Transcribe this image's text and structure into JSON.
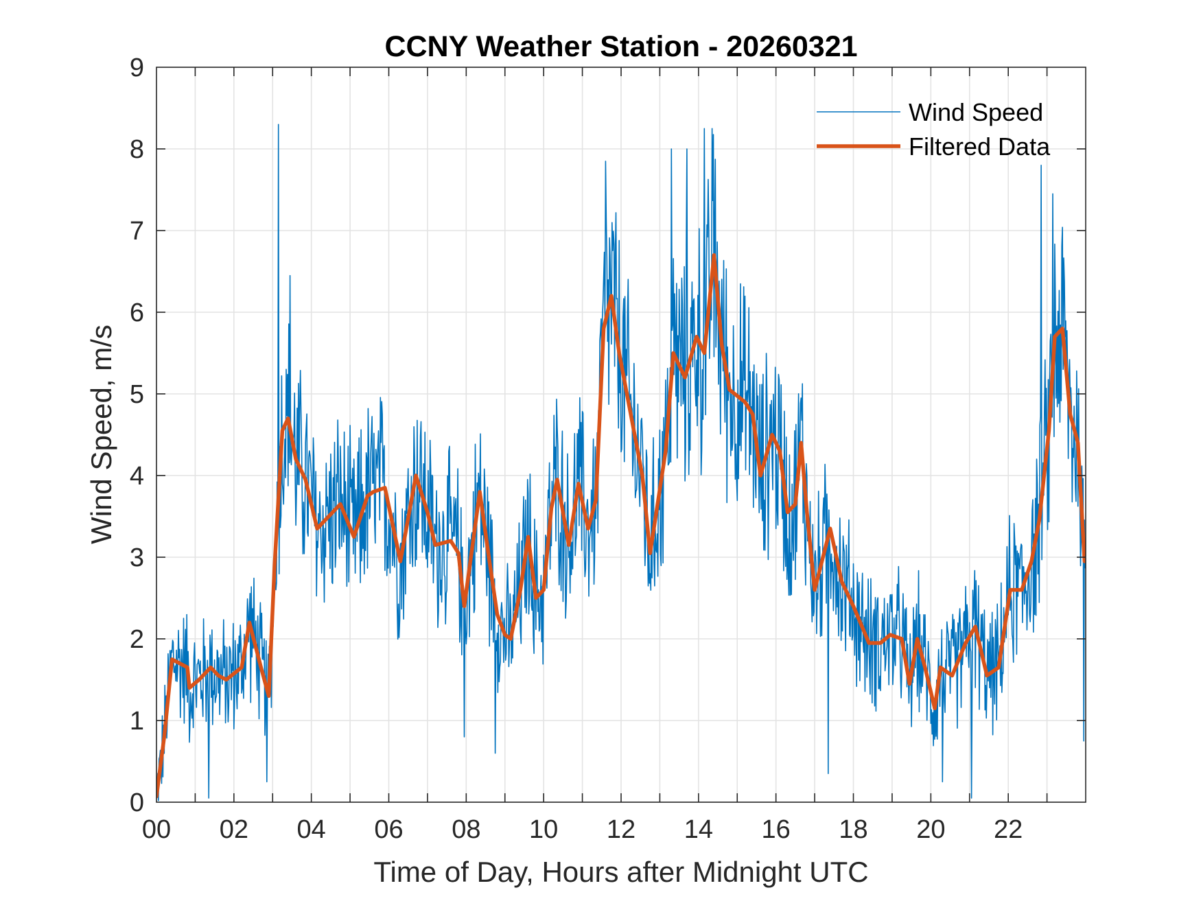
{
  "chart_data": {
    "type": "line",
    "title": "CCNY Weather Station - 20260321",
    "xlabel": "Time of Day, Hours after Midnight UTC",
    "ylabel": "Wind Speed, m/s",
    "xlim": [
      0,
      24
    ],
    "ylim": [
      0,
      9
    ],
    "grid": true,
    "legend_position": "top-right",
    "x_ticks": [
      0,
      2,
      4,
      6,
      8,
      10,
      12,
      14,
      16,
      18,
      20,
      22
    ],
    "x_tick_labels": [
      "00",
      "02",
      "04",
      "06",
      "08",
      "10",
      "12",
      "14",
      "16",
      "18",
      "20",
      "22"
    ],
    "y_ticks": [
      0,
      1,
      2,
      3,
      4,
      5,
      6,
      7,
      8,
      9
    ],
    "y_tick_labels": [
      "0",
      "1",
      "2",
      "3",
      "4",
      "5",
      "6",
      "7",
      "8",
      "9"
    ],
    "series": [
      {
        "name": "Wind Speed",
        "color": "#0072BD",
        "style": "thin",
        "noise_amplitude": 1.1,
        "sample_interval_minutes": 1,
        "notable_peaks": [
          {
            "x": 3.15,
            "y": 8.3
          },
          {
            "x": 3.45,
            "y": 6.45
          },
          {
            "x": 11.6,
            "y": 7.85
          },
          {
            "x": 13.3,
            "y": 8.0
          },
          {
            "x": 13.7,
            "y": 8.0
          },
          {
            "x": 14.15,
            "y": 8.25
          },
          {
            "x": 14.35,
            "y": 8.25
          },
          {
            "x": 22.85,
            "y": 7.8
          },
          {
            "x": 23.15,
            "y": 7.45
          }
        ],
        "notable_troughs": [
          {
            "x": 1.35,
            "y": 0.05
          },
          {
            "x": 2.85,
            "y": 0.25
          },
          {
            "x": 7.95,
            "y": 0.8
          },
          {
            "x": 8.75,
            "y": 0.6
          },
          {
            "x": 17.35,
            "y": 0.35
          },
          {
            "x": 20.3,
            "y": 0.25
          },
          {
            "x": 21.05,
            "y": 0.05
          },
          {
            "x": 23.95,
            "y": 0.75
          }
        ]
      },
      {
        "name": "Filtered Data",
        "color": "#D95319",
        "style": "thick",
        "x": [
          0,
          0.2,
          0.4,
          0.8,
          0.85,
          1.1,
          1.4,
          1.6,
          1.8,
          2.2,
          2.4,
          2.7,
          2.9,
          3.05,
          3.25,
          3.4,
          3.6,
          3.85,
          4.15,
          4.55,
          4.75,
          5.1,
          5.45,
          5.6,
          5.9,
          6.3,
          6.7,
          7.0,
          7.2,
          7.6,
          7.8,
          7.95,
          8.15,
          8.35,
          8.6,
          8.8,
          9.0,
          9.15,
          9.4,
          9.6,
          9.8,
          10.0,
          10.2,
          10.35,
          10.65,
          10.9,
          11.15,
          11.35,
          11.55,
          11.75,
          11.95,
          12.25,
          12.55,
          12.75,
          13.15,
          13.35,
          13.65,
          13.95,
          14.15,
          14.4,
          14.6,
          14.8,
          15.2,
          15.4,
          15.6,
          15.9,
          16.1,
          16.3,
          16.5,
          16.65,
          16.8,
          17.0,
          17.4,
          17.7,
          18.0,
          18.4,
          18.7,
          18.95,
          19.25,
          19.45,
          19.65,
          19.85,
          20.1,
          20.25,
          20.55,
          20.9,
          21.15,
          21.45,
          21.75,
          22.05,
          22.35,
          22.6,
          22.8,
          23.05,
          23.2,
          23.4,
          23.6,
          23.8,
          23.97
        ],
        "values": [
          0.07,
          0.8,
          1.75,
          1.65,
          1.4,
          1.5,
          1.65,
          1.55,
          1.5,
          1.65,
          2.2,
          1.65,
          1.3,
          2.9,
          4.55,
          4.7,
          4.2,
          3.95,
          3.35,
          3.55,
          3.65,
          3.25,
          3.75,
          3.8,
          3.85,
          2.95,
          4.0,
          3.55,
          3.15,
          3.2,
          3.05,
          2.4,
          3.1,
          3.8,
          2.95,
          2.3,
          2.05,
          2.0,
          2.6,
          3.25,
          2.5,
          2.6,
          3.6,
          3.95,
          3.15,
          3.9,
          3.35,
          3.7,
          5.8,
          6.2,
          5.5,
          4.75,
          4.0,
          3.05,
          4.3,
          5.5,
          5.2,
          5.7,
          5.5,
          6.7,
          5.6,
          5.05,
          4.9,
          4.75,
          4.0,
          4.5,
          4.3,
          3.55,
          3.65,
          4.4,
          3.55,
          2.6,
          3.35,
          2.7,
          2.4,
          1.95,
          1.95,
          2.05,
          2.0,
          1.45,
          2.0,
          1.65,
          1.15,
          1.65,
          1.55,
          1.95,
          2.15,
          1.55,
          1.65,
          2.6,
          2.6,
          2.95,
          3.45,
          4.55,
          5.7,
          5.8,
          4.75,
          4.4,
          2.95
        ]
      }
    ],
    "legend": [
      "Wind Speed",
      "Filtered Data"
    ]
  }
}
